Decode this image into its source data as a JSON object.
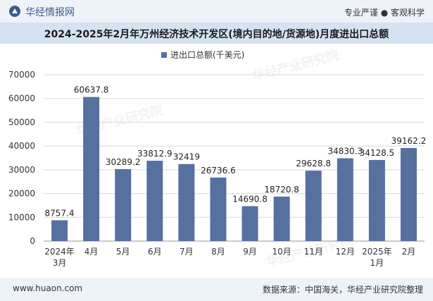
{
  "header": {
    "brand": "华经情报网",
    "tagline": "专业严谨 ● 客观科学"
  },
  "title": "2024-2025年2月年万州经济技术开发区(境内目的地/货源地)月度进出口总额",
  "footer": {
    "website": "www.huaon.com",
    "source": "数据来源：中国海关，华经产业研究院整理"
  },
  "watermark": "华经产业研究院",
  "colors": {
    "bar": "#5670a0",
    "header_bg": "#eef3f9",
    "title_bg": "#d5e2f1",
    "brand": "#3b5c8e",
    "grid": "#d9d9d9"
  },
  "icons": {
    "brand_logo": "huajing-logo-icon"
  },
  "chart_data": {
    "type": "bar",
    "legend_position": "top-center",
    "grid": true,
    "categories": [
      [
        "2024年",
        "3月"
      ],
      [
        "4月"
      ],
      [
        "5月"
      ],
      [
        "6月"
      ],
      [
        "7月"
      ],
      [
        "8月"
      ],
      [
        "9月"
      ],
      [
        "10月"
      ],
      [
        "11月"
      ],
      [
        "12月"
      ],
      [
        "2025年",
        "1月"
      ],
      [
        "2月"
      ]
    ],
    "series": [
      {
        "name": "进出口总额(千美元)",
        "values": [
          8757.4,
          60637.8,
          30289.2,
          33812.9,
          32419,
          26736.6,
          14690.8,
          18720.8,
          29628.8,
          34830.3,
          34128.5,
          39162.2
        ],
        "labels": [
          "8757.4",
          "60637.8",
          "30289.2",
          "33812.9",
          "32419",
          "26736.6",
          "14690.8",
          "18720.8",
          "29628.8",
          "34830.3",
          "34128.5",
          "39162.2"
        ]
      }
    ],
    "ylim": [
      0,
      70000
    ],
    "yticks": [
      0,
      10000,
      20000,
      30000,
      40000,
      50000,
      60000,
      70000
    ]
  }
}
